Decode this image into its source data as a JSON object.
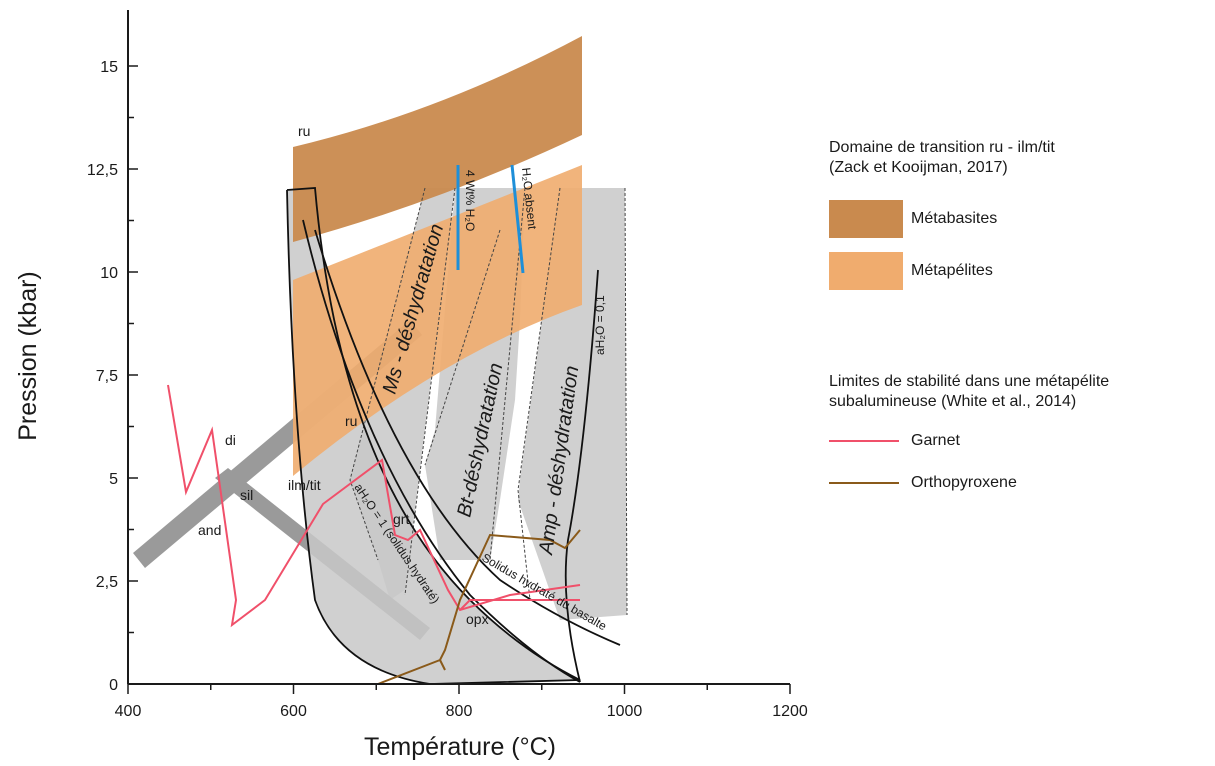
{
  "axes": {
    "x_title": "Température (°C)",
    "y_title": "Pression (kbar)",
    "x_ticks": [
      "400",
      "600",
      "800",
      "1000",
      "1200"
    ],
    "y_ticks": [
      "0",
      "2,5",
      "5",
      "7,5",
      "10",
      "12,5",
      "15"
    ],
    "xlim": [
      400,
      1200
    ],
    "ylim": [
      0,
      15
    ]
  },
  "colors": {
    "metabasite": "#c98a4e",
    "metapelite": "#f0ac6e",
    "grey_field": "#c8c8c8",
    "grey_band": "#9a9a9a",
    "garnet": "#f0506a",
    "orthopyroxene": "#8a5a1a",
    "blue_line": "#1e8fd8"
  },
  "diagram_labels": {
    "ru_top": "ru",
    "ru_mid": "ru",
    "ilm_tit": "ilm/tit",
    "di": "di",
    "sil": "sil",
    "and": "and",
    "grt": "grt",
    "opx": "opx",
    "h2o_4wt": "4 Wt% H₂O",
    "h2o_absent": "H₂O absent",
    "ms_dehydration": "Ms - déshydratation",
    "bt_dehydration": "Bt-déshydratation",
    "amp_dehydration": "Amp - déshydratation",
    "ah2o_01": "aH₂O = 0,1",
    "ah2o_1": "aH₂O = 1 (solidus hydraté)",
    "solidus_basalt": "Solidus hydraté du basalte"
  },
  "legend": {
    "section1_title_line1": "Domaine de transition ru - ilm/tit",
    "section1_title_line2": "(Zack et Kooijman, 2017)",
    "metabasites": "Métabasites",
    "metapelites": "Métapélites",
    "section2_title_line1": "Limites de stabilité dans une métapélite",
    "section2_title_line2": "subalumineuse (White et al., 2014)",
    "garnet": "Garnet",
    "orthopyroxene": "Orthopyroxene"
  }
}
